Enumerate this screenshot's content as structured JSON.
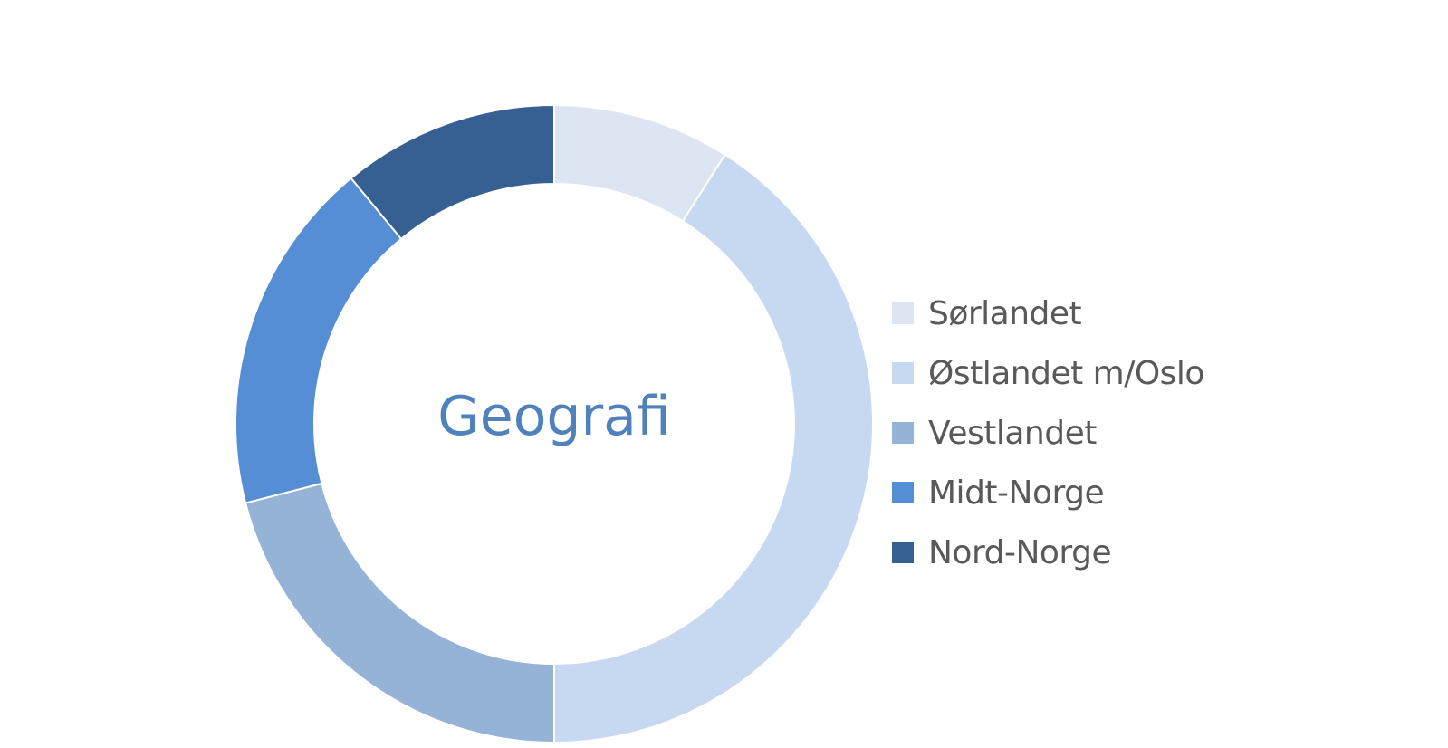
{
  "chart_data": {
    "type": "pie",
    "subtype": "donut",
    "title": "",
    "center_label": "Geografi",
    "categories": [
      "Sørlandet",
      "Østlandet m/Oslo",
      "Vestlandet",
      "Midt-Norge",
      "Nord-Norge"
    ],
    "values": [
      9,
      41,
      21,
      18,
      11
    ],
    "value_unit": "percent (estimated share)",
    "colors": [
      "#DCE6F2",
      "#C6D9F1",
      "#95B3D7",
      "#558ED5",
      "#376092"
    ],
    "legend_position": "right",
    "grid": false,
    "start_angle": "12 o'clock, clockwise"
  }
}
